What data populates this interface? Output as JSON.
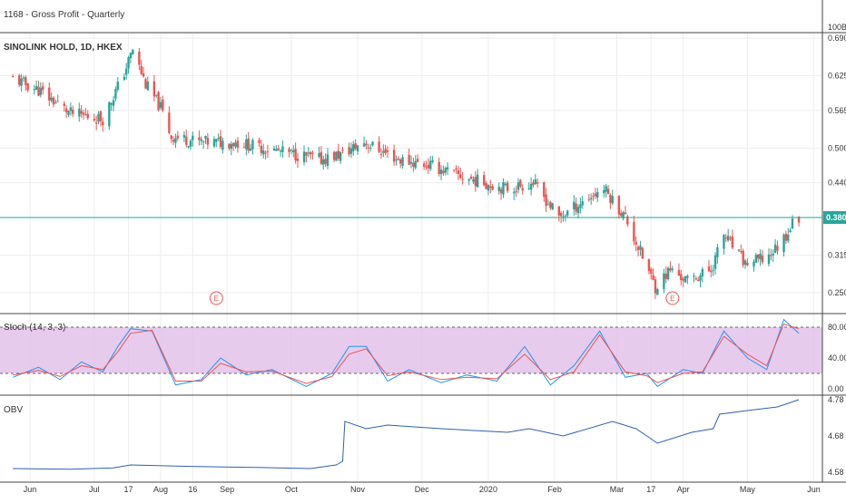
{
  "panels": {
    "gross_profit": {
      "title": "1168 - Gross Profit - Quarterly",
      "axis_label": "100B"
    },
    "price": {
      "title": "SINOLINK HOLD, 1D, HKEX",
      "last_price_label": "0.380",
      "earnings_marker": "E"
    },
    "stoch": {
      "title": "Stoch (14, 3, 3)",
      "upper_band": 80,
      "lower_band": 20
    },
    "obv": {
      "title": "OBV"
    }
  },
  "colors": {
    "up": "#26a69a",
    "down": "#ef5350",
    "stoch_k": "#2196f3",
    "stoch_d": "#ef5350",
    "stoch_band": "#e1bee7",
    "obv_line": "#2f5fb3",
    "price_line": "#26a69a",
    "separator": "#444444",
    "grid": "#eeeeee"
  },
  "chart_data": [
    {
      "type": "candlestick",
      "title": "SINOLINK HOLD, 1D, HKEX",
      "ylim": [
        0.225,
        0.69
      ],
      "y_ticks": [
        "0.690",
        "0.625",
        "0.565",
        "0.500",
        "0.440",
        "0.315",
        "0.250"
      ],
      "last_price": 0.38,
      "x_ticks": [
        "Jun",
        "Jul",
        "17",
        "Aug",
        "16",
        "Sep",
        "Oct",
        "Nov",
        "Dec",
        "2020",
        "Feb",
        "Mar",
        "17",
        "Apr",
        "May",
        "Jun"
      ],
      "earnings_events": [
        {
          "date": "2019-08-27",
          "label": "E"
        },
        {
          "date": "2020-03-27",
          "label": "E"
        }
      ],
      "close_path": [
        {
          "date": "2019-05-24",
          "close": 0.62
        },
        {
          "date": "2019-06-05",
          "close": 0.6
        },
        {
          "date": "2019-06-20",
          "close": 0.56
        },
        {
          "date": "2019-07-05",
          "close": 0.55
        },
        {
          "date": "2019-07-15",
          "close": 0.63
        },
        {
          "date": "2019-07-19",
          "close": 0.67
        },
        {
          "date": "2019-07-25",
          "close": 0.61
        },
        {
          "date": "2019-08-01",
          "close": 0.57
        },
        {
          "date": "2019-08-06",
          "close": 0.52
        },
        {
          "date": "2019-08-20",
          "close": 0.51
        },
        {
          "date": "2019-09-05",
          "close": 0.51
        },
        {
          "date": "2019-10-01",
          "close": 0.49
        },
        {
          "date": "2019-10-15",
          "close": 0.48
        },
        {
          "date": "2019-10-25",
          "close": 0.49
        },
        {
          "date": "2019-11-04",
          "close": 0.51
        },
        {
          "date": "2019-11-20",
          "close": 0.48
        },
        {
          "date": "2019-12-05",
          "close": 0.47
        },
        {
          "date": "2019-12-20",
          "close": 0.45
        },
        {
          "date": "2020-01-10",
          "close": 0.43
        },
        {
          "date": "2020-01-22",
          "close": 0.44
        },
        {
          "date": "2020-02-03",
          "close": 0.38
        },
        {
          "date": "2020-02-15",
          "close": 0.41
        },
        {
          "date": "2020-02-24",
          "close": 0.43
        },
        {
          "date": "2020-03-05",
          "close": 0.38
        },
        {
          "date": "2020-03-12",
          "close": 0.32
        },
        {
          "date": "2020-03-19",
          "close": 0.26
        },
        {
          "date": "2020-03-26",
          "close": 0.29
        },
        {
          "date": "2020-04-03",
          "close": 0.27
        },
        {
          "date": "2020-04-14",
          "close": 0.29
        },
        {
          "date": "2020-04-20",
          "close": 0.35
        },
        {
          "date": "2020-04-30",
          "close": 0.3
        },
        {
          "date": "2020-05-10",
          "close": 0.31
        },
        {
          "date": "2020-05-15",
          "close": 0.33
        },
        {
          "date": "2020-05-19",
          "close": 0.35
        },
        {
          "date": "2020-05-22",
          "close": 0.37
        },
        {
          "date": "2020-05-25",
          "close": 0.38
        }
      ]
    },
    {
      "type": "line",
      "title": "Stoch (14, 3, 3)",
      "ylim": [
        -5,
        100
      ],
      "y_ticks": [
        "80.00",
        "40.00",
        "0.00"
      ],
      "bands": [
        20,
        80
      ],
      "series": [
        {
          "name": "%K",
          "points": [
            {
              "date": "2019-05-24",
              "value": 15
            },
            {
              "date": "2019-06-05",
              "value": 28
            },
            {
              "date": "2019-06-15",
              "value": 12
            },
            {
              "date": "2019-06-25",
              "value": 35
            },
            {
              "date": "2019-07-05",
              "value": 22
            },
            {
              "date": "2019-07-12",
              "value": 55
            },
            {
              "date": "2019-07-18",
              "value": 78
            },
            {
              "date": "2019-07-28",
              "value": 75
            },
            {
              "date": "2019-08-08",
              "value": 5
            },
            {
              "date": "2019-08-20",
              "value": 12
            },
            {
              "date": "2019-08-29",
              "value": 40
            },
            {
              "date": "2019-09-10",
              "value": 18
            },
            {
              "date": "2019-09-22",
              "value": 25
            },
            {
              "date": "2019-10-08",
              "value": 3
            },
            {
              "date": "2019-10-20",
              "value": 20
            },
            {
              "date": "2019-10-28",
              "value": 55
            },
            {
              "date": "2019-11-05",
              "value": 55
            },
            {
              "date": "2019-11-15",
              "value": 10
            },
            {
              "date": "2019-11-25",
              "value": 25
            },
            {
              "date": "2019-12-10",
              "value": 8
            },
            {
              "date": "2019-12-22",
              "value": 18
            },
            {
              "date": "2020-01-05",
              "value": 10
            },
            {
              "date": "2020-01-18",
              "value": 55
            },
            {
              "date": "2020-01-30",
              "value": 5
            },
            {
              "date": "2020-02-10",
              "value": 30
            },
            {
              "date": "2020-02-22",
              "value": 75
            },
            {
              "date": "2020-03-05",
              "value": 15
            },
            {
              "date": "2020-03-15",
              "value": 20
            },
            {
              "date": "2020-03-20",
              "value": 3
            },
            {
              "date": "2020-04-01",
              "value": 25
            },
            {
              "date": "2020-04-10",
              "value": 20
            },
            {
              "date": "2020-04-20",
              "value": 75
            },
            {
              "date": "2020-05-01",
              "value": 40
            },
            {
              "date": "2020-05-10",
              "value": 25
            },
            {
              "date": "2020-05-18",
              "value": 90
            },
            {
              "date": "2020-05-25",
              "value": 72
            }
          ]
        },
        {
          "name": "%D",
          "points": [
            {
              "date": "2019-05-24",
              "value": 18
            },
            {
              "date": "2019-06-05",
              "value": 24
            },
            {
              "date": "2019-06-15",
              "value": 16
            },
            {
              "date": "2019-06-25",
              "value": 30
            },
            {
              "date": "2019-07-05",
              "value": 25
            },
            {
              "date": "2019-07-12",
              "value": 48
            },
            {
              "date": "2019-07-18",
              "value": 72
            },
            {
              "date": "2019-07-28",
              "value": 76
            },
            {
              "date": "2019-08-08",
              "value": 10
            },
            {
              "date": "2019-08-20",
              "value": 10
            },
            {
              "date": "2019-08-29",
              "value": 33
            },
            {
              "date": "2019-09-10",
              "value": 22
            },
            {
              "date": "2019-09-22",
              "value": 23
            },
            {
              "date": "2019-10-08",
              "value": 7
            },
            {
              "date": "2019-10-20",
              "value": 16
            },
            {
              "date": "2019-10-28",
              "value": 45
            },
            {
              "date": "2019-11-05",
              "value": 52
            },
            {
              "date": "2019-11-15",
              "value": 17
            },
            {
              "date": "2019-11-25",
              "value": 22
            },
            {
              "date": "2019-12-10",
              "value": 12
            },
            {
              "date": "2019-12-22",
              "value": 15
            },
            {
              "date": "2020-01-05",
              "value": 13
            },
            {
              "date": "2020-01-18",
              "value": 45
            },
            {
              "date": "2020-01-30",
              "value": 12
            },
            {
              "date": "2020-02-10",
              "value": 22
            },
            {
              "date": "2020-02-22",
              "value": 70
            },
            {
              "date": "2020-03-05",
              "value": 22
            },
            {
              "date": "2020-03-15",
              "value": 17
            },
            {
              "date": "2020-03-20",
              "value": 8
            },
            {
              "date": "2020-04-01",
              "value": 20
            },
            {
              "date": "2020-04-10",
              "value": 22
            },
            {
              "date": "2020-04-20",
              "value": 68
            },
            {
              "date": "2020-05-01",
              "value": 45
            },
            {
              "date": "2020-05-10",
              "value": 30
            },
            {
              "date": "2020-05-18",
              "value": 84
            },
            {
              "date": "2020-05-25",
              "value": 78
            }
          ]
        }
      ]
    },
    {
      "type": "line",
      "title": "OBV",
      "ylim": [
        4.57,
        4.79
      ],
      "y_ticks": [
        "4.78",
        "4.68",
        "4.58"
      ],
      "series": [
        {
          "name": "OBV",
          "points": [
            {
              "date": "2019-05-24",
              "value": 4.59
            },
            {
              "date": "2019-06-20",
              "value": 4.588
            },
            {
              "date": "2019-07-10",
              "value": 4.592
            },
            {
              "date": "2019-07-18",
              "value": 4.6
            },
            {
              "date": "2019-08-15",
              "value": 4.596
            },
            {
              "date": "2019-09-15",
              "value": 4.593
            },
            {
              "date": "2019-10-10",
              "value": 4.59
            },
            {
              "date": "2019-10-22",
              "value": 4.6
            },
            {
              "date": "2019-10-25",
              "value": 4.61
            },
            {
              "date": "2019-10-26",
              "value": 4.72
            },
            {
              "date": "2019-11-05",
              "value": 4.7
            },
            {
              "date": "2019-11-15",
              "value": 4.71
            },
            {
              "date": "2019-12-10",
              "value": 4.7
            },
            {
              "date": "2020-01-10",
              "value": 4.69
            },
            {
              "date": "2020-01-20",
              "value": 4.7
            },
            {
              "date": "2020-02-05",
              "value": 4.68
            },
            {
              "date": "2020-02-28",
              "value": 4.72
            },
            {
              "date": "2020-03-10",
              "value": 4.7
            },
            {
              "date": "2020-03-20",
              "value": 4.66
            },
            {
              "date": "2020-04-05",
              "value": 4.69
            },
            {
              "date": "2020-04-15",
              "value": 4.7
            },
            {
              "date": "2020-04-18",
              "value": 4.74
            },
            {
              "date": "2020-05-01",
              "value": 4.75
            },
            {
              "date": "2020-05-15",
              "value": 4.76
            },
            {
              "date": "2020-05-25",
              "value": 4.78
            }
          ]
        }
      ]
    },
    {
      "type": "line",
      "title": "1168 - Gross Profit - Quarterly",
      "y_ticks": [
        "100B"
      ],
      "series": []
    }
  ]
}
